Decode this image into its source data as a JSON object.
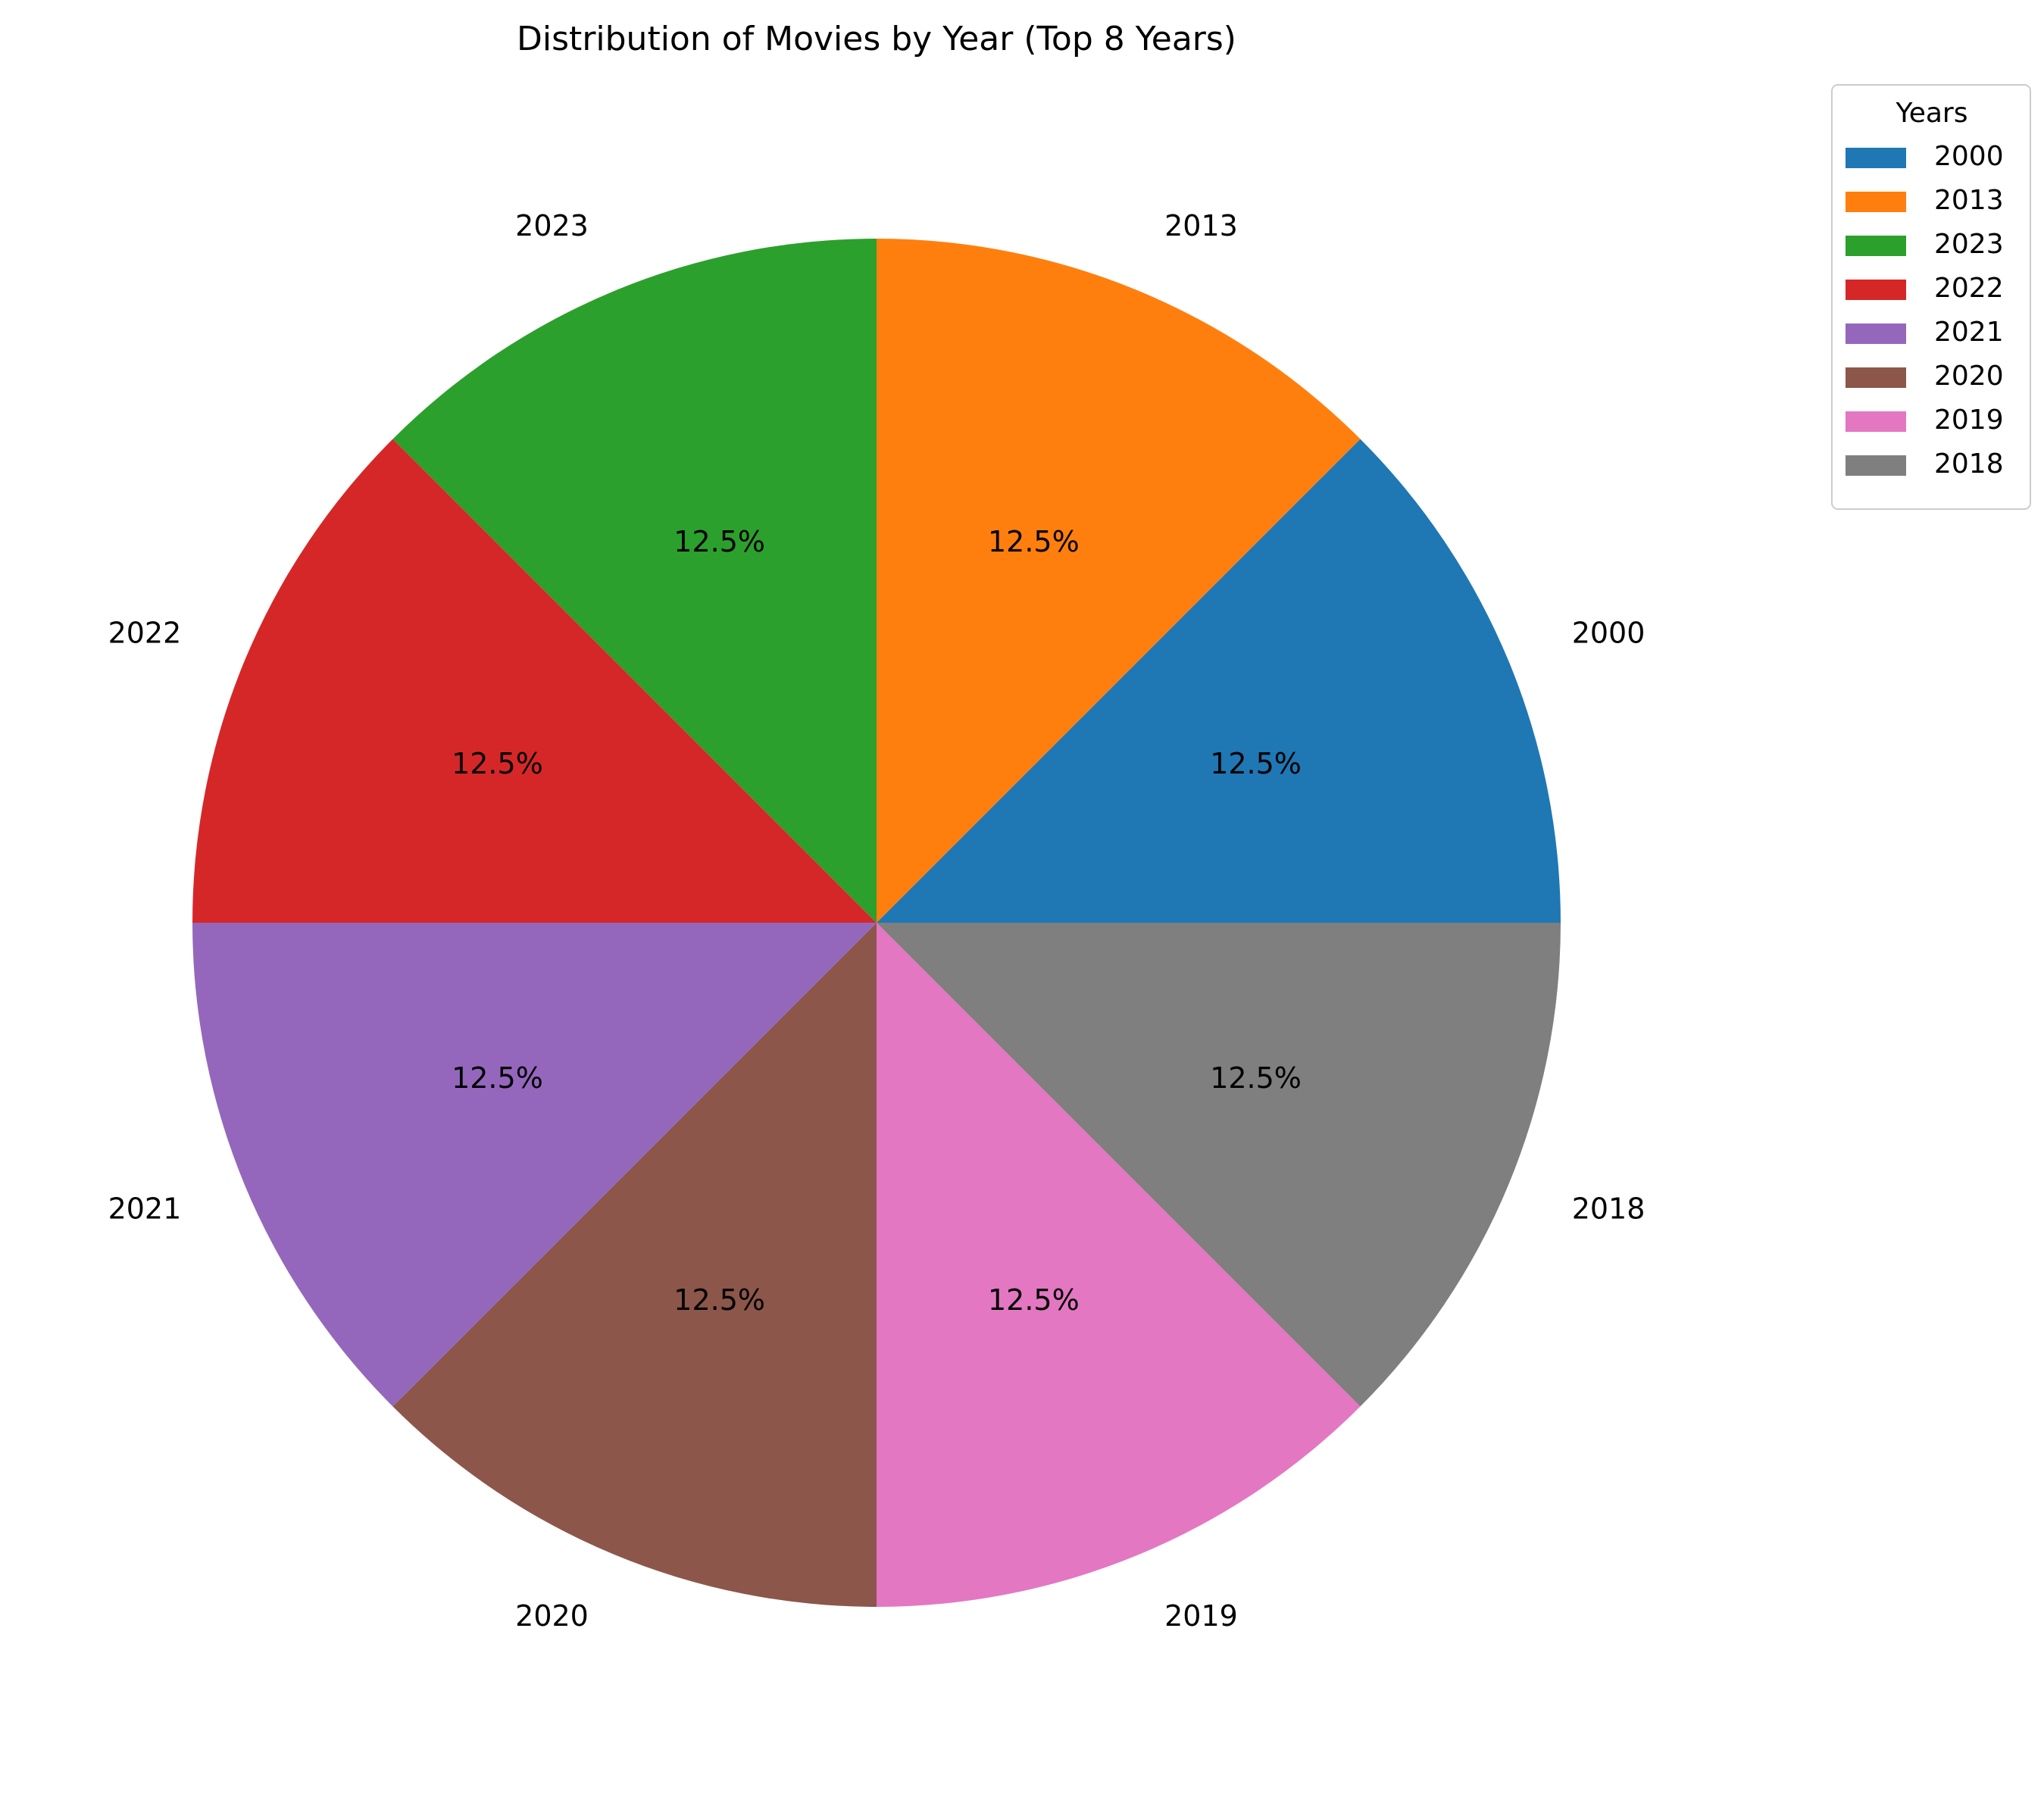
{
  "chart_data": {
    "type": "pie",
    "title": "Distribution of Movies by Year (Top 8 Years)",
    "categories": [
      "2000",
      "2013",
      "2023",
      "2022",
      "2021",
      "2020",
      "2019",
      "2018"
    ],
    "values": [
      12.5,
      12.5,
      12.5,
      12.5,
      12.5,
      12.5,
      12.5,
      12.5
    ],
    "percent_labels": [
      "12.5%",
      "12.5%",
      "12.5%",
      "12.5%",
      "12.5%",
      "12.5%",
      "12.5%",
      "12.5%"
    ],
    "colors": [
      "#1f77b4",
      "#ff7f0e",
      "#2ca02c",
      "#d62728",
      "#9467bd",
      "#8c564b",
      "#e377c2",
      "#7f7f7f"
    ],
    "start_angle_deg": 0,
    "direction": "counterclockwise",
    "legend": {
      "title": "Years",
      "placement": "upper-right outside",
      "entries": [
        "2000",
        "2013",
        "2023",
        "2022",
        "2021",
        "2020",
        "2019",
        "2018"
      ]
    }
  }
}
